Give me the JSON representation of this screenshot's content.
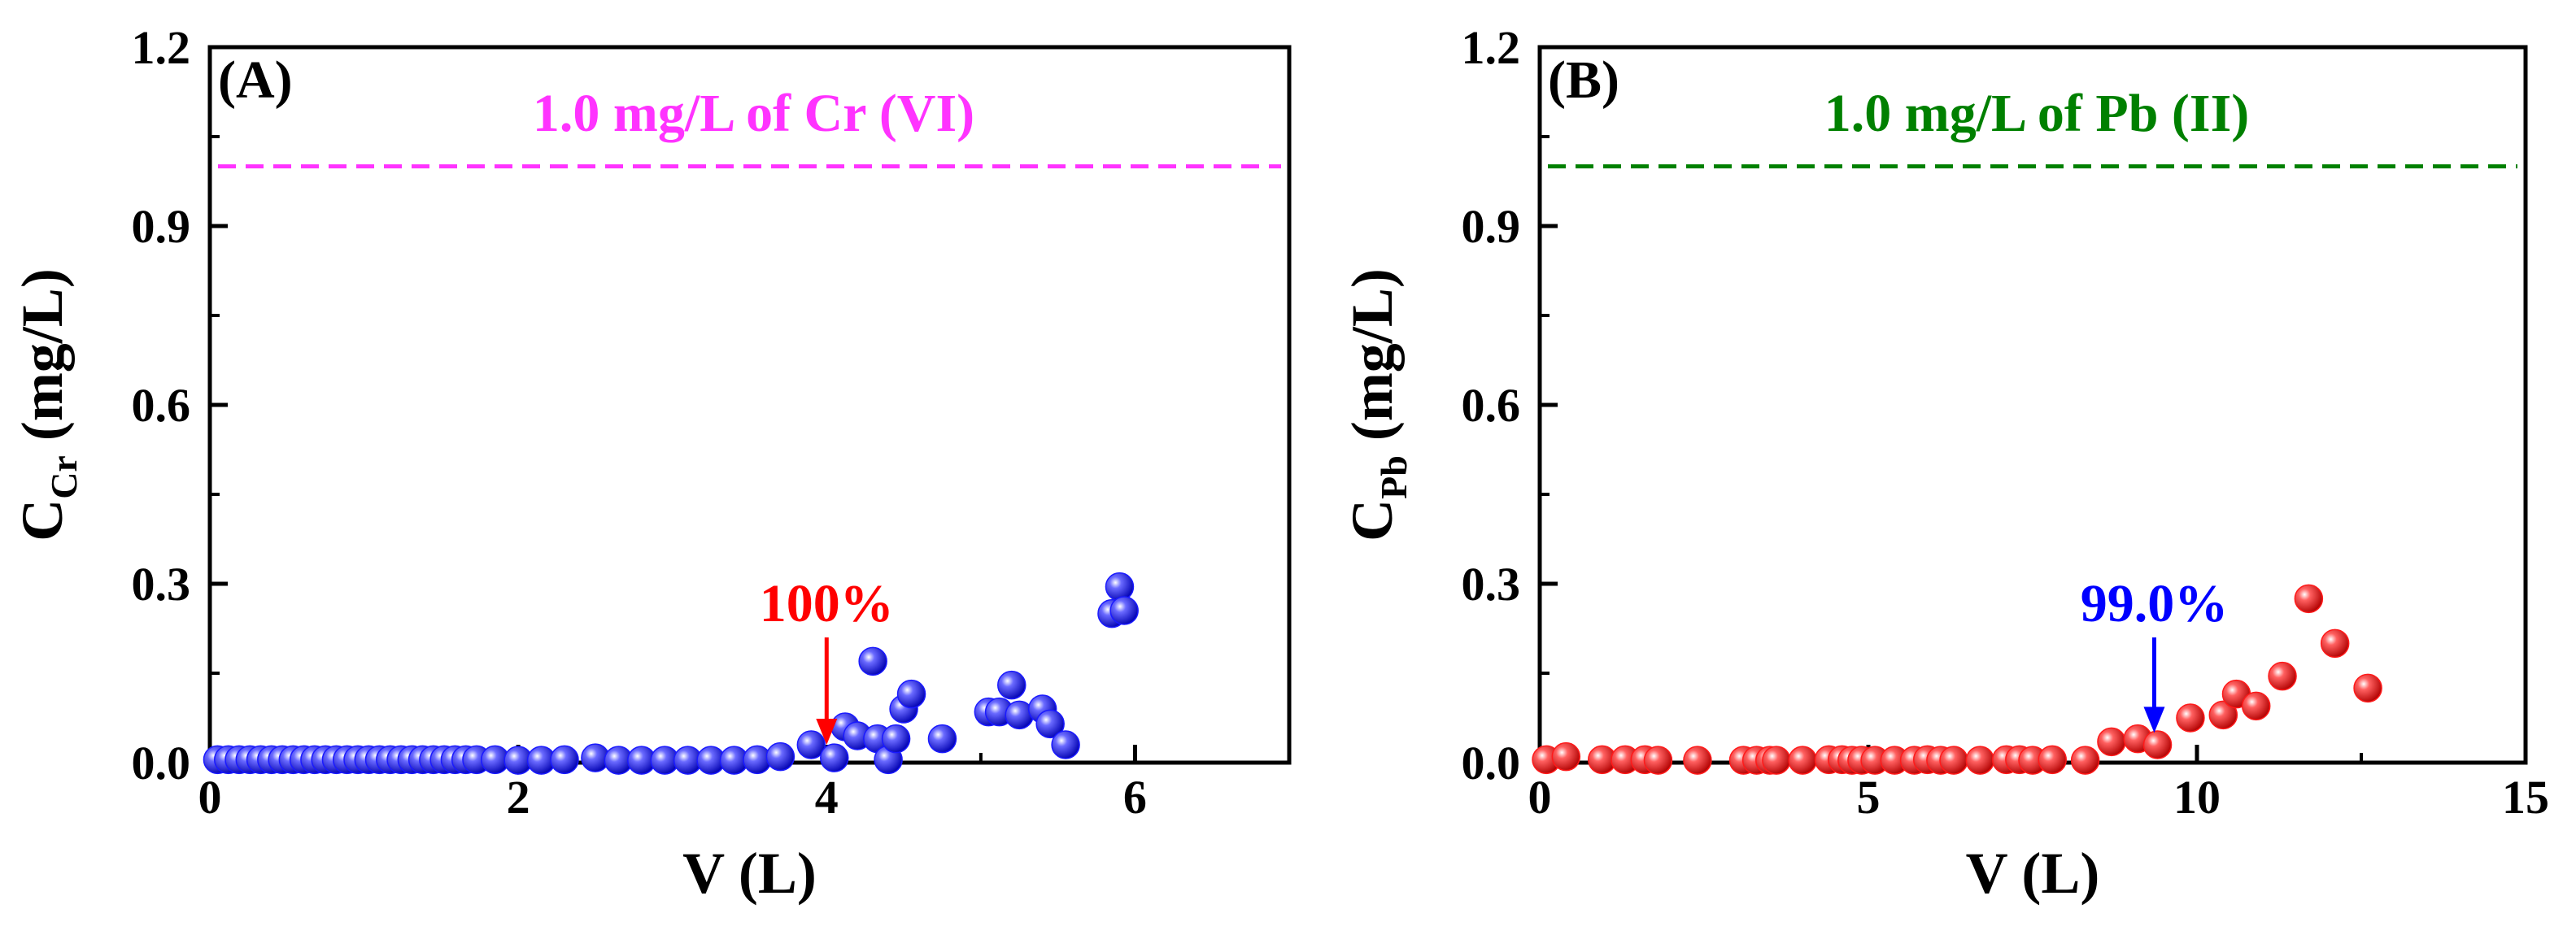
{
  "chart_data": [
    {
      "type": "scatter",
      "panel_label": "(A)",
      "ylabel_main": "C",
      "ylabel_sub": "Cr",
      "ylabel_unit": " (mg/L)",
      "xlabel": "V (L)",
      "xlim": [
        0,
        7
      ],
      "ylim": [
        0,
        1.2
      ],
      "xticks": [
        0,
        2,
        4,
        6
      ],
      "xtick_labels": [
        "0",
        "2",
        "4",
        "6"
      ],
      "yticks": [
        0,
        0.3,
        0.6,
        0.9,
        1.2
      ],
      "ytick_labels": [
        "0.0",
        "0.3",
        "0.6",
        "0.9",
        "1.2"
      ],
      "marker_color": "#1a1aff",
      "reference": {
        "y": 1.0,
        "label": "1.0 mg/L of Cr (VI)",
        "color": "#ff33ff"
      },
      "annotation": {
        "text": "100%",
        "x": 4.0,
        "y_from": 0.21,
        "y_to": 0.03,
        "color": "#ff0000"
      },
      "series": [
        {
          "name": "Cr (VI)",
          "points": [
            [
              0.05,
              0.005
            ],
            [
              0.12,
              0.005
            ],
            [
              0.19,
              0.005
            ],
            [
              0.26,
              0.005
            ],
            [
              0.33,
              0.005
            ],
            [
              0.4,
              0.005
            ],
            [
              0.47,
              0.005
            ],
            [
              0.54,
              0.005
            ],
            [
              0.61,
              0.005
            ],
            [
              0.68,
              0.005
            ],
            [
              0.75,
              0.005
            ],
            [
              0.82,
              0.005
            ],
            [
              0.89,
              0.005
            ],
            [
              0.96,
              0.005
            ],
            [
              1.03,
              0.005
            ],
            [
              1.1,
              0.005
            ],
            [
              1.17,
              0.005
            ],
            [
              1.24,
              0.005
            ],
            [
              1.31,
              0.005
            ],
            [
              1.38,
              0.005
            ],
            [
              1.45,
              0.005
            ],
            [
              1.52,
              0.005
            ],
            [
              1.59,
              0.005
            ],
            [
              1.66,
              0.005
            ],
            [
              1.73,
              0.005
            ],
            [
              1.85,
              0.005
            ],
            [
              2.0,
              0.004
            ],
            [
              2.15,
              0.004
            ],
            [
              2.3,
              0.005
            ],
            [
              2.5,
              0.008
            ],
            [
              2.65,
              0.004
            ],
            [
              2.8,
              0.004
            ],
            [
              2.95,
              0.004
            ],
            [
              3.1,
              0.004
            ],
            [
              3.25,
              0.004
            ],
            [
              3.4,
              0.004
            ],
            [
              3.55,
              0.005
            ],
            [
              3.7,
              0.01
            ],
            [
              3.9,
              0.03
            ],
            [
              4.05,
              0.008
            ],
            [
              4.12,
              0.06
            ],
            [
              4.2,
              0.045
            ],
            [
              4.3,
              0.17
            ],
            [
              4.33,
              0.04
            ],
            [
              4.4,
              0.005
            ],
            [
              4.45,
              0.04
            ],
            [
              4.5,
              0.09
            ],
            [
              4.55,
              0.115
            ],
            [
              4.75,
              0.04
            ],
            [
              5.05,
              0.085
            ],
            [
              5.12,
              0.085
            ],
            [
              5.2,
              0.13
            ],
            [
              5.25,
              0.08
            ],
            [
              5.4,
              0.09
            ],
            [
              5.45,
              0.065
            ],
            [
              5.55,
              0.03
            ],
            [
              5.85,
              0.25
            ],
            [
              5.9,
              0.295
            ],
            [
              5.93,
              0.255
            ]
          ]
        }
      ]
    },
    {
      "type": "scatter",
      "panel_label": "(B)",
      "ylabel_main": "C",
      "ylabel_sub": "Pb",
      "ylabel_unit": " (mg/L)",
      "xlabel": "V (L)",
      "xlim": [
        0,
        15
      ],
      "ylim": [
        0,
        1.2
      ],
      "xticks": [
        0,
        5,
        10,
        15
      ],
      "xtick_labels": [
        "0",
        "5",
        "10",
        "15"
      ],
      "yticks": [
        0,
        0.3,
        0.6,
        0.9,
        1.2
      ],
      "ytick_labels": [
        "0.0",
        "0.3",
        "0.6",
        "0.9",
        "1.2"
      ],
      "marker_color": "#ff1a1a",
      "reference": {
        "y": 1.0,
        "label": "1.0 mg/L of Pb (II)",
        "color": "#008000"
      },
      "annotation": {
        "text": "99.0%",
        "x": 9.35,
        "y_from": 0.21,
        "y_to": 0.05,
        "color": "#0000ff"
      },
      "series": [
        {
          "name": "Pb (II)",
          "points": [
            [
              0.1,
              0.005
            ],
            [
              0.4,
              0.01
            ],
            [
              0.95,
              0.005
            ],
            [
              1.3,
              0.005
            ],
            [
              1.6,
              0.005
            ],
            [
              1.8,
              0.004
            ],
            [
              2.4,
              0.004
            ],
            [
              3.1,
              0.004
            ],
            [
              3.3,
              0.004
            ],
            [
              3.5,
              0.004
            ],
            [
              3.6,
              0.004
            ],
            [
              4.0,
              0.004
            ],
            [
              4.4,
              0.005
            ],
            [
              4.6,
              0.005
            ],
            [
              4.75,
              0.004
            ],
            [
              4.9,
              0.004
            ],
            [
              5.1,
              0.004
            ],
            [
              5.4,
              0.004
            ],
            [
              5.7,
              0.004
            ],
            [
              5.9,
              0.005
            ],
            [
              6.1,
              0.004
            ],
            [
              6.3,
              0.004
            ],
            [
              6.7,
              0.004
            ],
            [
              7.1,
              0.005
            ],
            [
              7.3,
              0.005
            ],
            [
              7.5,
              0.004
            ],
            [
              7.8,
              0.005
            ],
            [
              8.3,
              0.004
            ],
            [
              8.7,
              0.035
            ],
            [
              9.1,
              0.04
            ],
            [
              9.4,
              0.03
            ],
            [
              9.9,
              0.075
            ],
            [
              10.4,
              0.08
            ],
            [
              10.6,
              0.115
            ],
            [
              10.9,
              0.095
            ],
            [
              11.3,
              0.145
            ],
            [
              11.7,
              0.275
            ],
            [
              12.1,
              0.2
            ],
            [
              12.6,
              0.125
            ]
          ]
        }
      ]
    }
  ]
}
